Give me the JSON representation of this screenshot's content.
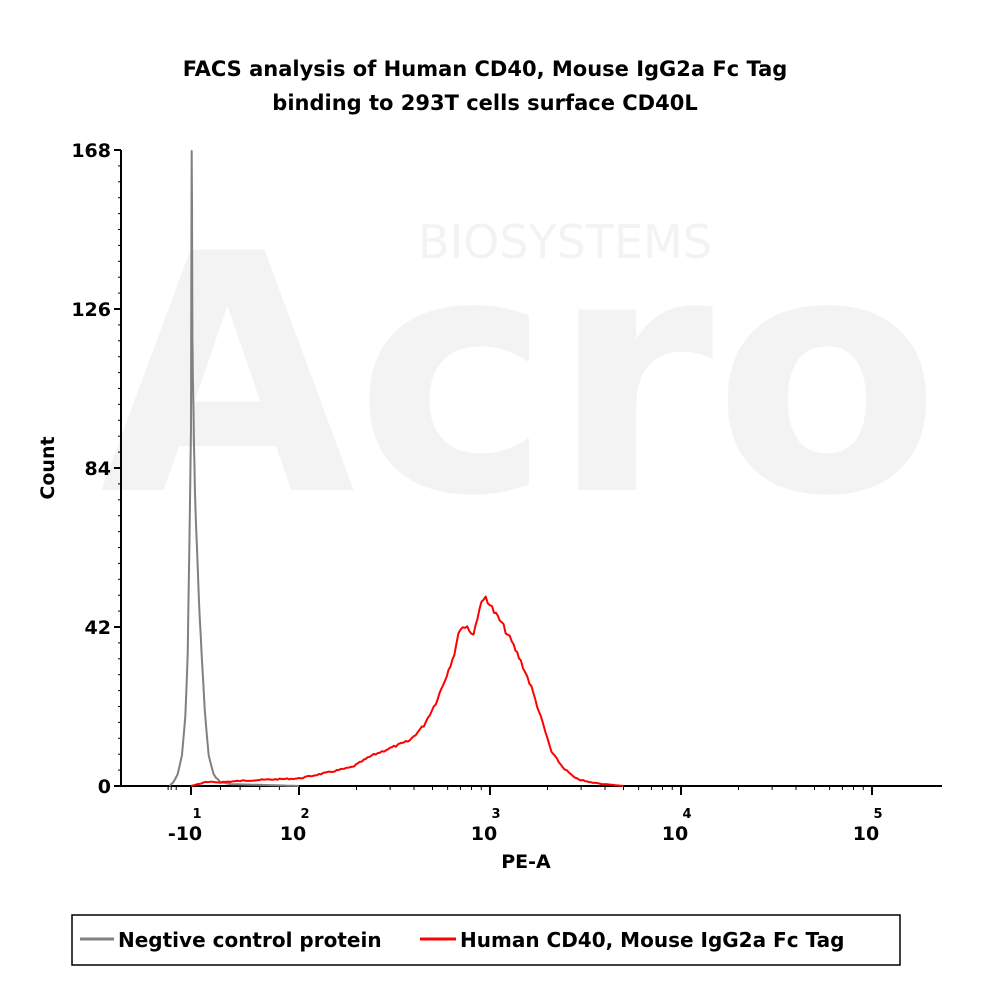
{
  "chart_data": {
    "type": "line",
    "title_lines": [
      "FACS analysis of Human CD40, Mouse IgG2a Fc Tag",
      "binding to 293T cells surface CD40L"
    ],
    "xlabel": "PE-A",
    "ylabel": "Count",
    "x_scale": "biexponential",
    "x_ticks": [
      {
        "base": "-10",
        "exp": "1",
        "value": -10
      },
      {
        "base": "10",
        "exp": "2",
        "value": 100
      },
      {
        "base": "10",
        "exp": "3",
        "value": 1000
      },
      {
        "base": "10",
        "exp": "4",
        "value": 10000
      },
      {
        "base": "10",
        "exp": "5",
        "value": 100000
      }
    ],
    "y_ticks": [
      "0",
      "42",
      "84",
      "126",
      "168"
    ],
    "ylim": [
      0,
      168
    ],
    "legend_position": "bottom",
    "watermark": {
      "brand": "Acro",
      "sub": "BIOSYSTEMS"
    },
    "series": [
      {
        "name": "Negtive control protein",
        "color": "#808080",
        "points": [
          [
            -35,
            0
          ],
          [
            -25,
            1
          ],
          [
            -18,
            3
          ],
          [
            -14,
            8
          ],
          [
            -12,
            18
          ],
          [
            -11,
            35
          ],
          [
            -10.5,
            60
          ],
          [
            -10,
            95
          ],
          [
            -9.6,
            140
          ],
          [
            -9.3,
            168
          ],
          [
            -9.0,
            155
          ],
          [
            -8.6,
            118
          ],
          [
            -8.2,
            110
          ],
          [
            -7.6,
            100
          ],
          [
            -7.0,
            92
          ],
          [
            -6,
            78
          ],
          [
            -5,
            70
          ],
          [
            -3,
            56
          ],
          [
            -1,
            44
          ],
          [
            1,
            34
          ],
          [
            4,
            20
          ],
          [
            8,
            8
          ],
          [
            13,
            3
          ],
          [
            20,
            1
          ],
          [
            30,
            0.5
          ],
          [
            60,
            0.3
          ],
          [
            100,
            0
          ]
        ]
      },
      {
        "name": "Human CD40, Mouse IgG2a Fc Tag",
        "color": "#ff0000",
        "points": [
          [
            -10,
            0
          ],
          [
            -3,
            0.5
          ],
          [
            5,
            1
          ],
          [
            20,
            1
          ],
          [
            50,
            1.5
          ],
          [
            100,
            2
          ],
          [
            140,
            3.5
          ],
          [
            190,
            5
          ],
          [
            240,
            8
          ],
          [
            300,
            10
          ],
          [
            380,
            12
          ],
          [
            450,
            16
          ],
          [
            520,
            22
          ],
          [
            580,
            28
          ],
          [
            650,
            35
          ],
          [
            700,
            42
          ],
          [
            760,
            42
          ],
          [
            820,
            40
          ],
          [
            880,
            47
          ],
          [
            950,
            50
          ],
          [
            1050,
            46
          ],
          [
            1150,
            43
          ],
          [
            1300,
            38
          ],
          [
            1450,
            33
          ],
          [
            1650,
            26
          ],
          [
            1850,
            18
          ],
          [
            2100,
            9
          ],
          [
            2400,
            5
          ],
          [
            2800,
            2
          ],
          [
            3300,
            1
          ],
          [
            4000,
            0.5
          ],
          [
            5000,
            0
          ]
        ]
      }
    ]
  }
}
